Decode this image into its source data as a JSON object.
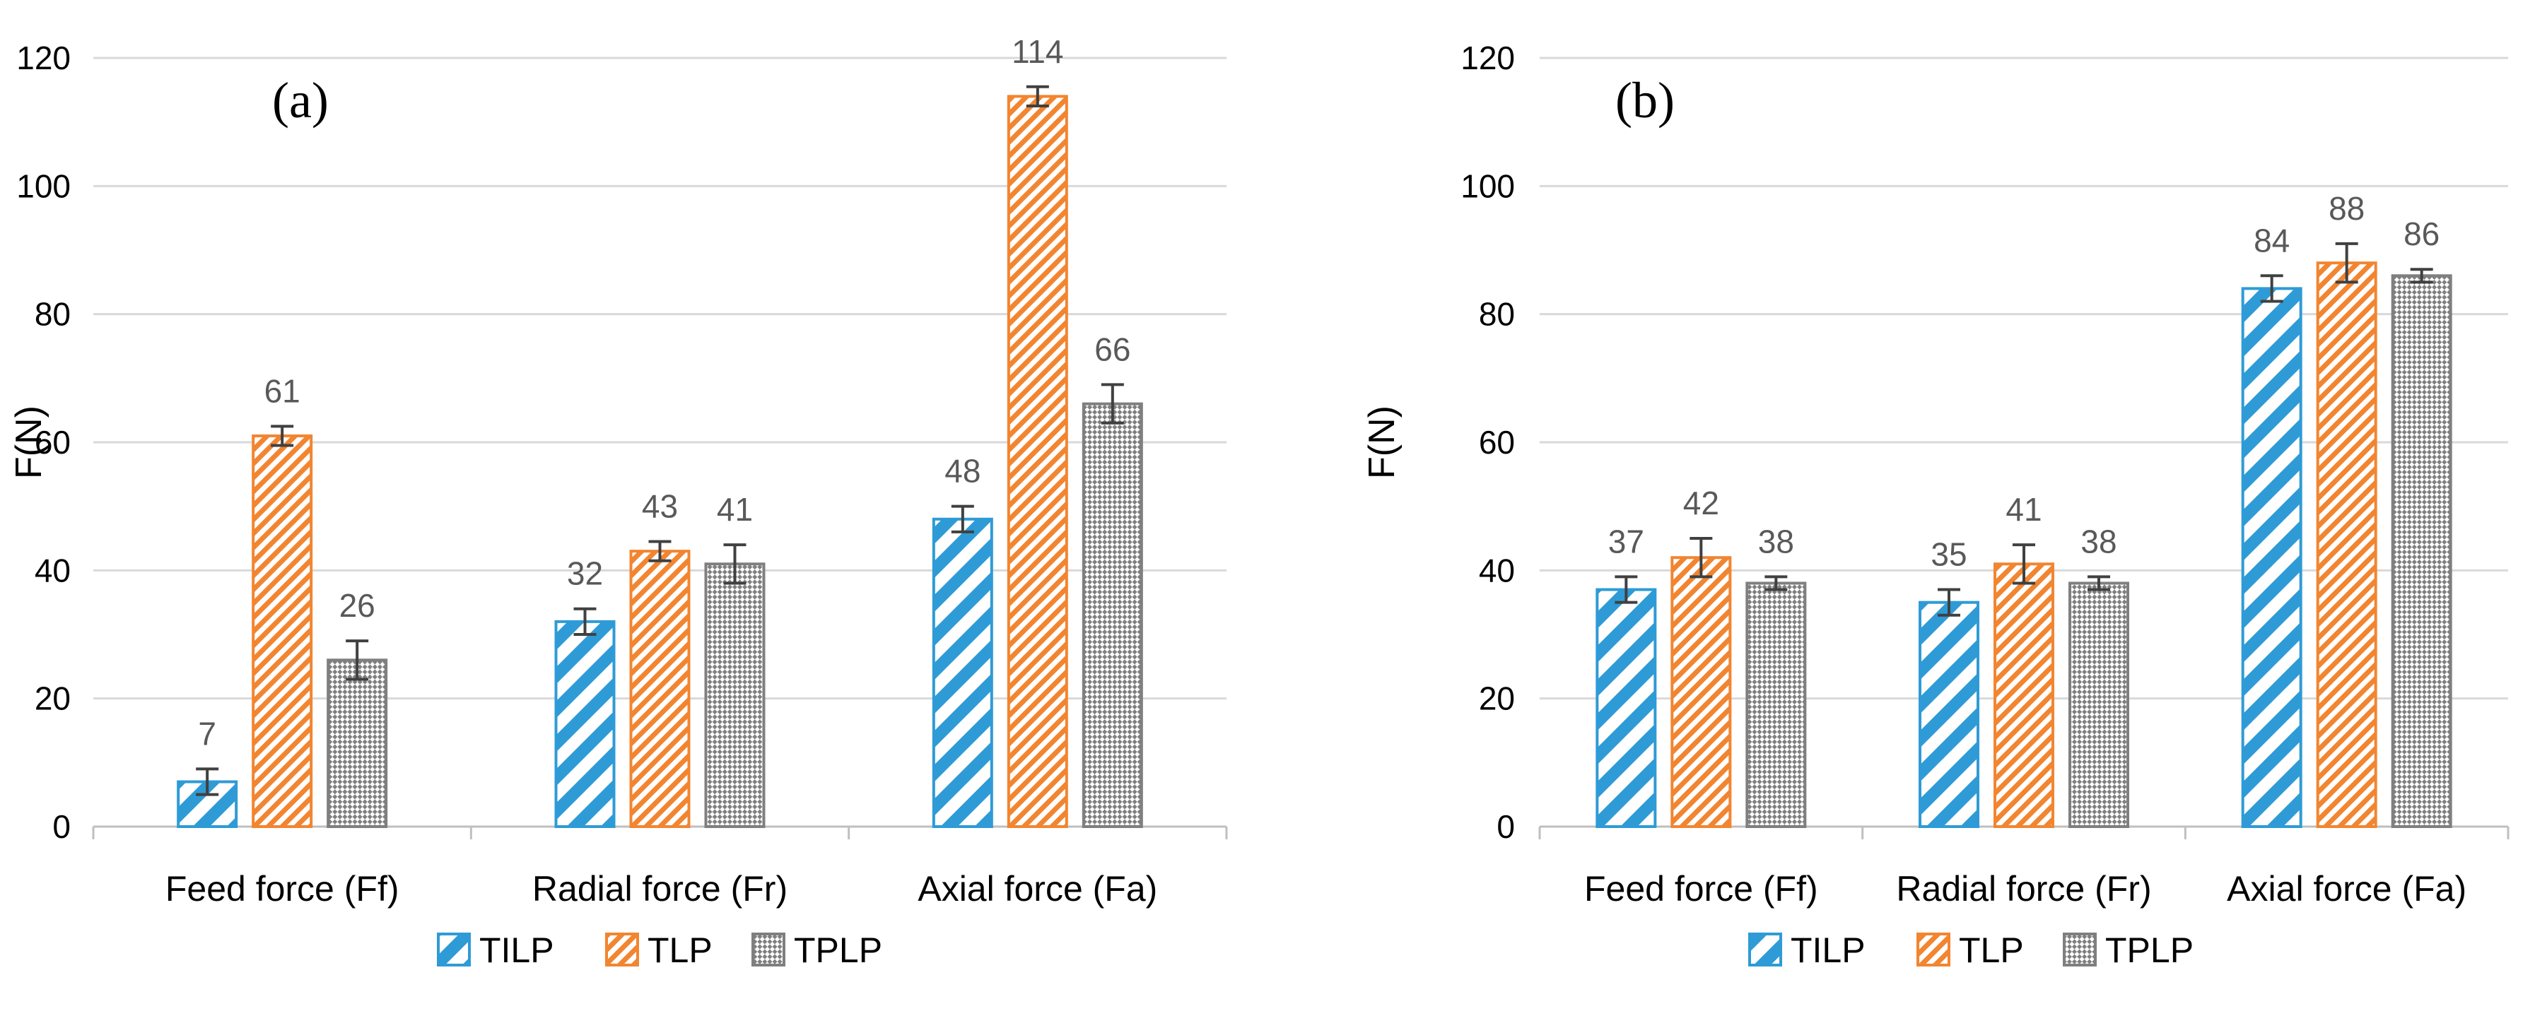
{
  "colors": {
    "TILP": "#2E9BD6",
    "TLP": "#F28530",
    "TPLP": "#7F7F7F",
    "grid": "#D9D9D9",
    "axis": "#BFBFBF",
    "error": "#404040",
    "data_label": "#595959"
  },
  "chart_data": [
    {
      "type": "bar",
      "panel_label": "(a)",
      "title": "",
      "xlabel": "",
      "ylabel": "F(N)",
      "ylim": [
        0,
        120
      ],
      "yticks": [
        0,
        20,
        40,
        60,
        80,
        100,
        120
      ],
      "grid": true,
      "legend_position": "bottom",
      "categories": [
        "Feed force (Ff)",
        "Radial force (Fr)",
        "Axial force (Fa)"
      ],
      "series": [
        {
          "name": "TILP",
          "values": [
            7,
            32,
            48
          ],
          "errors": [
            2,
            2,
            2
          ],
          "pattern": "wide-diagonal"
        },
        {
          "name": "TLP",
          "values": [
            61,
            43,
            114
          ],
          "errors": [
            1.5,
            1.5,
            1.5
          ],
          "pattern": "dense-diagonal"
        },
        {
          "name": "TPLP",
          "values": [
            26,
            41,
            66
          ],
          "errors": [
            3,
            3,
            3
          ],
          "pattern": "checker"
        }
      ]
    },
    {
      "type": "bar",
      "panel_label": "(b)",
      "title": "",
      "xlabel": "",
      "ylabel": "F(N)",
      "ylim": [
        0,
        120
      ],
      "yticks": [
        0,
        20,
        40,
        60,
        80,
        100,
        120
      ],
      "grid": true,
      "legend_position": "bottom",
      "categories": [
        "Feed force (Ff)",
        "Radial force (Fr)",
        "Axial force (Fa)"
      ],
      "series": [
        {
          "name": "TILP",
          "values": [
            37,
            35,
            84
          ],
          "errors": [
            2,
            2,
            2
          ],
          "pattern": "wide-diagonal"
        },
        {
          "name": "TLP",
          "values": [
            42,
            41,
            88
          ],
          "errors": [
            3,
            3,
            3
          ],
          "pattern": "dense-diagonal"
        },
        {
          "name": "TPLP",
          "values": [
            38,
            38,
            86
          ],
          "errors": [
            1,
            1,
            1
          ],
          "pattern": "checker"
        }
      ]
    }
  ]
}
